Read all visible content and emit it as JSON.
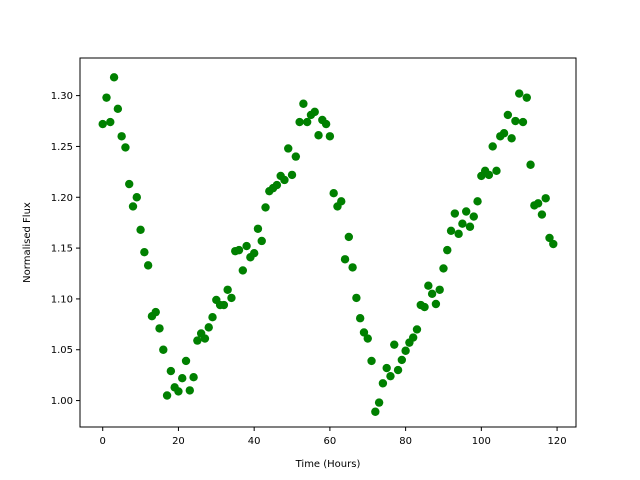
{
  "chart_data": {
    "type": "scatter",
    "title": "",
    "xlabel": "Time (Hours)",
    "ylabel": "Normalised Flux",
    "xlim": [
      -6,
      125
    ],
    "ylim": [
      0.974,
      1.337
    ],
    "x_ticks": [
      0,
      20,
      40,
      60,
      80,
      100,
      120
    ],
    "y_ticks": [
      1.0,
      1.05,
      1.1,
      1.15,
      1.2,
      1.25,
      1.3
    ],
    "grid": false,
    "legend": "none",
    "marker_color": "#008000",
    "series": [
      {
        "x": [
          0,
          1,
          2,
          3,
          4,
          5,
          6,
          7,
          8,
          9,
          10,
          11,
          12,
          13,
          14,
          15,
          16,
          17,
          18,
          19,
          20,
          21,
          22,
          23,
          24,
          25,
          26,
          27,
          28,
          29,
          30,
          31,
          32,
          33,
          34,
          35,
          36,
          37,
          38,
          39,
          40,
          41,
          42,
          43,
          44,
          45,
          46,
          47,
          48,
          49,
          50,
          51,
          52,
          53,
          54,
          55,
          56,
          57,
          58,
          59,
          60,
          61,
          62,
          63,
          64,
          65,
          66,
          67,
          68,
          69,
          70,
          71,
          72,
          73,
          74,
          75,
          76,
          77,
          78,
          79,
          80,
          81,
          82,
          83,
          84,
          85,
          86,
          87,
          88,
          89,
          90,
          91,
          92,
          93,
          94,
          95,
          96,
          97,
          98,
          99,
          100,
          101,
          102,
          103,
          104,
          105,
          106,
          107,
          108,
          109,
          110,
          111,
          112,
          113,
          114,
          115,
          116,
          117,
          118,
          119
        ],
        "y": [
          1.272,
          1.298,
          1.274,
          1.318,
          1.287,
          1.26,
          1.249,
          1.213,
          1.191,
          1.2,
          1.168,
          1.146,
          1.133,
          1.083,
          1.087,
          1.071,
          1.05,
          1.005,
          1.029,
          1.013,
          1.009,
          1.022,
          1.039,
          1.01,
          1.023,
          1.059,
          1.066,
          1.061,
          1.072,
          1.082,
          1.099,
          1.094,
          1.094,
          1.109,
          1.101,
          1.147,
          1.148,
          1.128,
          1.152,
          1.141,
          1.145,
          1.169,
          1.157,
          1.19,
          1.206,
          1.209,
          1.212,
          1.221,
          1.217,
          1.248,
          1.222,
          1.24,
          1.274,
          1.292,
          1.274,
          1.281,
          1.284,
          1.261,
          1.276,
          1.272,
          1.26,
          1.204,
          1.191,
          1.196,
          1.139,
          1.161,
          1.131,
          1.101,
          1.081,
          1.067,
          1.061,
          1.039,
          0.989,
          0.998,
          1.017,
          1.032,
          1.024,
          1.055,
          1.03,
          1.04,
          1.049,
          1.057,
          1.062,
          1.07,
          1.094,
          1.092,
          1.113,
          1.105,
          1.095,
          1.109,
          1.13,
          1.148,
          1.167,
          1.184,
          1.164,
          1.174,
          1.186,
          1.171,
          1.181,
          1.196,
          1.221,
          1.226,
          1.222,
          1.25,
          1.226,
          1.26,
          1.263,
          1.281,
          1.258,
          1.275,
          1.302,
          1.274,
          1.298,
          1.232,
          1.192,
          1.194,
          1.183,
          1.199,
          1.16,
          1.154
        ]
      }
    ]
  }
}
